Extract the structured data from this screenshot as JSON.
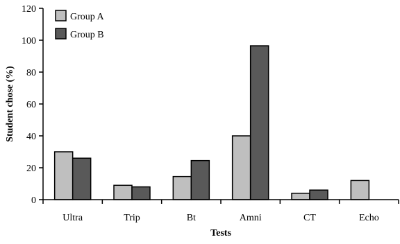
{
  "chart_data": {
    "type": "bar",
    "categories": [
      "Ultra",
      "Trip",
      "Bt",
      "Amni",
      "CT",
      "Echo"
    ],
    "series": [
      {
        "name": "Group A",
        "values": [
          30,
          9,
          14.5,
          40,
          4,
          12
        ],
        "color": "#bfbfbf"
      },
      {
        "name": "Group B",
        "values": [
          26,
          8,
          24.5,
          96.5,
          6,
          0
        ],
        "color": "#595959"
      }
    ],
    "title": "",
    "xlabel": "Tests",
    "ylabel": "Student chose (%)",
    "ylim": [
      0,
      120
    ],
    "yticks": [
      "0",
      "20",
      "40",
      "60",
      "80",
      "100",
      "120"
    ],
    "grid": false,
    "legend_position": "top-left"
  }
}
